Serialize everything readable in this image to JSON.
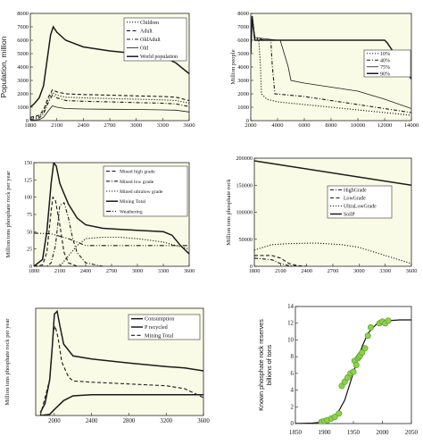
{
  "chart_data": [
    {
      "type": "line",
      "ylabel": "Population, million",
      "xlim": [
        1800,
        3600
      ],
      "ylim": [
        0,
        8000
      ],
      "xticks": [
        "1800",
        "2100",
        "2400",
        "2700",
        "3000",
        "3300",
        "3600"
      ],
      "yticks": [
        "0",
        "1000",
        "2000",
        "3000",
        "4000",
        "5000",
        "6000",
        "7000",
        "8000"
      ],
      "legend_position": "top-right",
      "colors": {
        "plot_bg": "#fafbe6",
        "line": "#1a1a1a"
      },
      "series": [
        {
          "name": "Children",
          "style": "dotted",
          "x": [
            1800,
            1900,
            1950,
            2000,
            2050,
            2100,
            2200,
            2400,
            2700,
            3000,
            3300,
            3450,
            3600
          ],
          "y": [
            200,
            300,
            650,
            1500,
            2100,
            1900,
            1750,
            1700,
            1650,
            1600,
            1550,
            1500,
            1300
          ]
        },
        {
          "name": "Adult",
          "style": "dashed",
          "x": [
            1800,
            1900,
            1950,
            2000,
            2050,
            2100,
            2200,
            2400,
            2700,
            3000,
            3300,
            3450,
            3600
          ],
          "y": [
            250,
            400,
            800,
            1700,
            2300,
            2150,
            2000,
            1950,
            1900,
            1850,
            1800,
            1750,
            1500
          ]
        },
        {
          "name": "OldAdult",
          "style": "dashdot",
          "x": [
            1800,
            1900,
            1950,
            2000,
            2050,
            2100,
            2200,
            2400,
            2700,
            3000,
            3300,
            3450,
            3600
          ],
          "y": [
            100,
            200,
            500,
            1300,
            1900,
            1700,
            1500,
            1450,
            1400,
            1350,
            1300,
            1250,
            1050
          ]
        },
        {
          "name": "Old",
          "style": "thin",
          "x": [
            1800,
            1900,
            1950,
            2000,
            2050,
            2100,
            2200,
            2400,
            2700,
            3000,
            3300,
            3450,
            3600
          ],
          "y": [
            30,
            80,
            250,
            700,
            1100,
            1000,
            900,
            870,
            850,
            830,
            800,
            780,
            650
          ]
        },
        {
          "name": "World population",
          "style": "solid",
          "x": [
            1800,
            1850,
            1900,
            1950,
            2000,
            2030,
            2060,
            2100,
            2200,
            2400,
            2700,
            3000,
            3300,
            3450,
            3600
          ],
          "y": [
            1000,
            1300,
            1700,
            2600,
            5000,
            6400,
            7000,
            6600,
            6000,
            5500,
            5200,
            5000,
            4800,
            4300,
            3500
          ]
        }
      ]
    },
    {
      "type": "line",
      "ylabel": "Million people",
      "xlim": [
        2000,
        14000
      ],
      "ylim": [
        0,
        8000
      ],
      "xticks": [
        "2000",
        "4000",
        "6000",
        "8000",
        "10000",
        "12000",
        "14000"
      ],
      "yticks": [
        "0",
        "1000",
        "2000",
        "3000",
        "4000",
        "5000",
        "6000",
        "7000",
        "8000"
      ],
      "legend_position": "top-right",
      "colors": {
        "plot_bg": "#fafbe6",
        "line": "#1a1a1a"
      },
      "series": [
        {
          "name": "10%",
          "style": "dotted",
          "x": [
            2000,
            2100,
            2300,
            2600,
            2700,
            2800,
            3200,
            4000,
            6000,
            8000,
            10000,
            12000,
            14000
          ],
          "y": [
            5000,
            7800,
            6200,
            6000,
            4500,
            2000,
            1600,
            1400,
            1200,
            1000,
            800,
            600,
            400
          ]
        },
        {
          "name": "40%",
          "style": "dashdot",
          "x": [
            2000,
            2100,
            2300,
            3000,
            3500,
            3600,
            3800,
            6000,
            8000,
            10000,
            12000,
            14000
          ],
          "y": [
            5000,
            7800,
            6200,
            6000,
            6000,
            4200,
            2000,
            1800,
            1500,
            1200,
            900,
            600
          ]
        },
        {
          "name": "75%",
          "style": "thin",
          "x": [
            2000,
            2100,
            2300,
            4000,
            4200,
            4800,
            5000,
            6000,
            8000,
            10000,
            12000,
            14000
          ],
          "y": [
            5000,
            7800,
            6200,
            6000,
            6000,
            4000,
            3000,
            2800,
            2500,
            2200,
            1600,
            900
          ]
        },
        {
          "name": "90%",
          "style": "solid",
          "x": [
            2000,
            2100,
            2300,
            12000,
            12200,
            14000
          ],
          "y": [
            5000,
            7800,
            6000,
            6000,
            5800,
            3100
          ]
        }
      ]
    },
    {
      "type": "line",
      "ylabel": "Million tons phosphate rock per year",
      "xlim": [
        1800,
        3600
      ],
      "ylim": [
        0,
        150
      ],
      "xticks": [
        "1800",
        "2100",
        "2400",
        "2700",
        "3000",
        "3300",
        "3600"
      ],
      "yticks": [
        "0",
        "25",
        "50",
        "75",
        "100",
        "125",
        "150"
      ],
      "legend_position": "top-right",
      "colors": {
        "plot_bg": "#fafbe6",
        "line": "#1a1a1a"
      },
      "series": [
        {
          "name": "Mined high grade",
          "style": "dashed",
          "x": [
            1800,
            1900,
            1950,
            2000,
            2020,
            2050,
            2100,
            2150,
            2200,
            2300,
            2400
          ],
          "y": [
            0,
            2,
            20,
            80,
            100,
            95,
            60,
            20,
            5,
            0,
            0
          ]
        },
        {
          "name": "Mined low grade",
          "style": "dashdot",
          "x": [
            1800,
            1950,
            2000,
            2050,
            2100,
            2150,
            2200,
            2250,
            2300,
            2400,
            2600
          ],
          "y": [
            0,
            0,
            5,
            30,
            88,
            92,
            70,
            40,
            20,
            5,
            0
          ]
        },
        {
          "name": "Mined ultralow grade",
          "style": "dotted",
          "x": [
            1800,
            2100,
            2200,
            2300,
            2400,
            2600,
            2800,
            3000,
            3300,
            3600
          ],
          "y": [
            0,
            0,
            15,
            30,
            40,
            42,
            42,
            40,
            35,
            25
          ]
        },
        {
          "name": "Mining Total",
          "style": "solid",
          "x": [
            1800,
            1900,
            1950,
            2000,
            2030,
            2060,
            2100,
            2150,
            2200,
            2300,
            2400,
            2600,
            3000,
            3300,
            3400,
            3500,
            3600
          ],
          "y": [
            0,
            10,
            50,
            120,
            150,
            145,
            120,
            105,
            90,
            70,
            60,
            55,
            52,
            50,
            45,
            30,
            18
          ]
        },
        {
          "name": "Weathering",
          "style": "dashdotdot",
          "x": [
            1800,
            2000,
            2200,
            2400,
            2700,
            3000,
            3300,
            3600
          ],
          "y": [
            48,
            47,
            40,
            30,
            30,
            30,
            30,
            30
          ]
        }
      ]
    },
    {
      "type": "line",
      "ylabel": "Million tons phosphate rock",
      "xlim": [
        1800,
        3600
      ],
      "ylim": [
        0,
        200000
      ],
      "xticks": [
        "1800",
        "2100",
        "2400",
        "2700",
        "3000",
        "3300",
        "3600"
      ],
      "yticks": [
        "0",
        "50000",
        "100000",
        "150000",
        "200000"
      ],
      "legend_position": "right",
      "colors": {
        "plot_bg": "#fafbe6",
        "line": "#1a1a1a"
      },
      "series": [
        {
          "name": "HighGrade",
          "style": "dashdot",
          "x": [
            1800,
            2000,
            2100,
            2200,
            2300
          ],
          "y": [
            15000,
            12000,
            5000,
            1000,
            0
          ]
        },
        {
          "name": "LowGrade",
          "style": "dashed",
          "x": [
            1800,
            2000,
            2100,
            2200,
            2300,
            2400
          ],
          "y": [
            20000,
            20000,
            15000,
            5000,
            1000,
            0
          ]
        },
        {
          "name": "UltraLowGrade",
          "style": "dotted",
          "x": [
            1800,
            1900,
            2000,
            2200,
            2500,
            2800,
            3000,
            3200,
            3400,
            3600
          ],
          "y": [
            30000,
            35000,
            40000,
            42000,
            43000,
            40000,
            35000,
            25000,
            15000,
            5000
          ]
        },
        {
          "name": "SoilP",
          "style": "solid",
          "x": [
            1800,
            3600
          ],
          "y": [
            195000,
            150000
          ]
        }
      ]
    },
    {
      "type": "line",
      "ylabel": "Million tons phosphate rock per year",
      "xlim": [
        1800,
        3600
      ],
      "ylim": [
        0,
        180
      ],
      "xticks": [
        "2000",
        "2400",
        "2800",
        "3200",
        "3600"
      ],
      "yticks": [],
      "legend_position": "top-right",
      "colors": {
        "plot_bg": "#fafbe6",
        "line": "#1a1a1a"
      },
      "series": [
        {
          "name": "Consumption",
          "style": "solid",
          "x": [
            1850,
            1900,
            1950,
            1980,
            2000,
            2030,
            2060,
            2100,
            2200,
            2400,
            2800,
            3200,
            3400,
            3600
          ],
          "y": [
            5,
            20,
            60,
            120,
            170,
            175,
            150,
            120,
            100,
            95,
            88,
            82,
            80,
            75
          ]
        },
        {
          "name": "P recycled",
          "style": "solid",
          "x": [
            1850,
            1950,
            2000,
            2100,
            2200,
            2400,
            2800,
            3200,
            3600
          ],
          "y": [
            0,
            2,
            10,
            25,
            33,
            35,
            35,
            35,
            35
          ]
        },
        {
          "name": "Mining Total",
          "style": "dashed",
          "x": [
            1850,
            1950,
            1990,
            2010,
            2040,
            2080,
            2150,
            2200,
            2400,
            2800,
            3200,
            3400,
            3600
          ],
          "y": [
            0,
            60,
            140,
            150,
            130,
            90,
            65,
            58,
            56,
            53,
            50,
            45,
            30
          ]
        }
      ]
    },
    {
      "type": "scatter",
      "ylabel": "Known phosphate rock reserves billions of tons",
      "xlim": [
        1850,
        2050
      ],
      "ylim": [
        0,
        14
      ],
      "xticks": [
        "1850",
        "1900",
        "1950",
        "2000",
        "2050"
      ],
      "yticks": [
        "0",
        "2",
        "4",
        "6",
        "8",
        "10",
        "12",
        "14"
      ],
      "colors": {
        "plot_bg": "#ffffff",
        "point": "#8ed14a",
        "point_edge": "#4f9a25",
        "line": "#111111"
      },
      "points": {
        "x": [
          1895,
          1900,
          1905,
          1912,
          1918,
          1925,
          1930,
          1935,
          1940,
          1945,
          1950,
          1952,
          1955,
          1958,
          1960,
          1962,
          1965,
          1970,
          1975,
          1980,
          1995,
          2000,
          2005,
          2010
        ],
        "y": [
          0.2,
          0.3,
          0.4,
          0.6,
          0.8,
          1.2,
          4.5,
          5,
          5.5,
          6,
          6.2,
          7.5,
          7,
          7.8,
          8,
          8.2,
          8.5,
          9,
          10.5,
          11.5,
          12,
          12.2,
          12,
          12.3
        ]
      },
      "fit": {
        "x": [
          1850,
          1880,
          1900,
          1920,
          1935,
          1945,
          1955,
          1965,
          1975,
          1990,
          2010,
          2030,
          2050
        ],
        "y": [
          0,
          0.05,
          0.2,
          0.9,
          2.8,
          5,
          7.2,
          9.2,
          10.8,
          11.9,
          12.3,
          12.4,
          12.4
        ]
      }
    }
  ]
}
